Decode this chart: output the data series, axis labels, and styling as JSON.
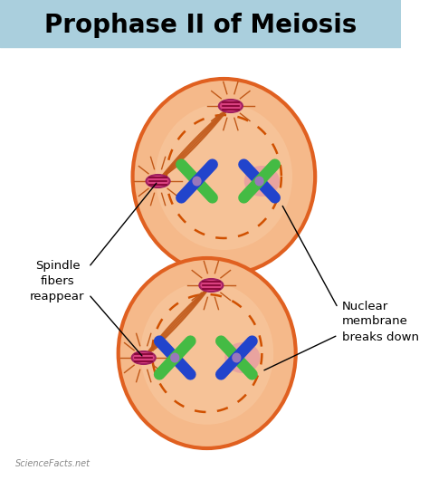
{
  "title": "Prophase II of Meiosis",
  "title_fontsize": 20,
  "title_fontweight": "bold",
  "title_bg": "#aacfdd",
  "bg_color": "#ffffff",
  "cell_fill": "#f5b98a",
  "cell_edge": "#e06020",
  "cell_inner_fill": "#f8c8a8",
  "nuclear_dashed_color": "#d05000",
  "spindle_color": "#c05818",
  "centriole_fill": "#d94080",
  "centriole_edge": "#a02060",
  "chromosome_green": "#44bb44",
  "chromosome_blue": "#2244cc",
  "chromosome_center": "#9977bb",
  "nucleolus_color": "#e8a0a0",
  "label_spindle": "Spindle\nfibers\nreappear",
  "label_nuclear": "Nuclear\nmembrane\nbreaks down",
  "watermark": "ScienceFacts.net"
}
